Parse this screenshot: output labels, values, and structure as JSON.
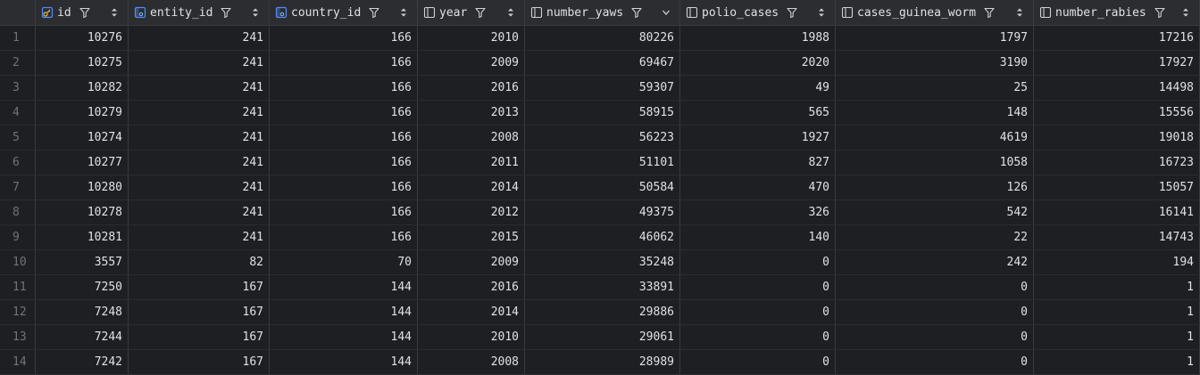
{
  "columns": [
    {
      "name": "id",
      "icon": "primary-key-icon",
      "sort": "both"
    },
    {
      "name": "entity_id",
      "icon": "foreign-key-icon",
      "sort": "both"
    },
    {
      "name": "country_id",
      "icon": "foreign-key-icon",
      "sort": "both"
    },
    {
      "name": "year",
      "icon": "column-icon",
      "sort": "both"
    },
    {
      "name": "number_yaws",
      "icon": "column-icon",
      "sort": "desc"
    },
    {
      "name": "polio_cases",
      "icon": "column-icon",
      "sort": "both"
    },
    {
      "name": "cases_guinea_worm",
      "icon": "column-icon",
      "sort": "both"
    },
    {
      "name": "number_rabies",
      "icon": "column-icon",
      "sort": "both"
    }
  ],
  "rows": [
    {
      "n": "1",
      "cells": [
        "10276",
        "241",
        "166",
        "2010",
        "80226",
        "1988",
        "1797",
        "17216"
      ]
    },
    {
      "n": "2",
      "cells": [
        "10275",
        "241",
        "166",
        "2009",
        "69467",
        "2020",
        "3190",
        "17927"
      ]
    },
    {
      "n": "3",
      "cells": [
        "10282",
        "241",
        "166",
        "2016",
        "59307",
        "49",
        "25",
        "14498"
      ]
    },
    {
      "n": "4",
      "cells": [
        "10279",
        "241",
        "166",
        "2013",
        "58915",
        "565",
        "148",
        "15556"
      ]
    },
    {
      "n": "5",
      "cells": [
        "10274",
        "241",
        "166",
        "2008",
        "56223",
        "1927",
        "4619",
        "19018"
      ]
    },
    {
      "n": "6",
      "cells": [
        "10277",
        "241",
        "166",
        "2011",
        "51101",
        "827",
        "1058",
        "16723"
      ]
    },
    {
      "n": "7",
      "cells": [
        "10280",
        "241",
        "166",
        "2014",
        "50584",
        "470",
        "126",
        "15057"
      ]
    },
    {
      "n": "8",
      "cells": [
        "10278",
        "241",
        "166",
        "2012",
        "49375",
        "326",
        "542",
        "16141"
      ]
    },
    {
      "n": "9",
      "cells": [
        "10281",
        "241",
        "166",
        "2015",
        "46062",
        "140",
        "22",
        "14743"
      ]
    },
    {
      "n": "10",
      "cells": [
        "3557",
        "82",
        "70",
        "2009",
        "35248",
        "0",
        "242",
        "194"
      ]
    },
    {
      "n": "11",
      "cells": [
        "7250",
        "167",
        "144",
        "2016",
        "33891",
        "0",
        "0",
        "1"
      ]
    },
    {
      "n": "12",
      "cells": [
        "7248",
        "167",
        "144",
        "2014",
        "29886",
        "0",
        "0",
        "1"
      ]
    },
    {
      "n": "13",
      "cells": [
        "7244",
        "167",
        "144",
        "2010",
        "29061",
        "0",
        "0",
        "1"
      ]
    },
    {
      "n": "14",
      "cells": [
        "7242",
        "167",
        "144",
        "2008",
        "28989",
        "0",
        "0",
        "1"
      ]
    }
  ]
}
